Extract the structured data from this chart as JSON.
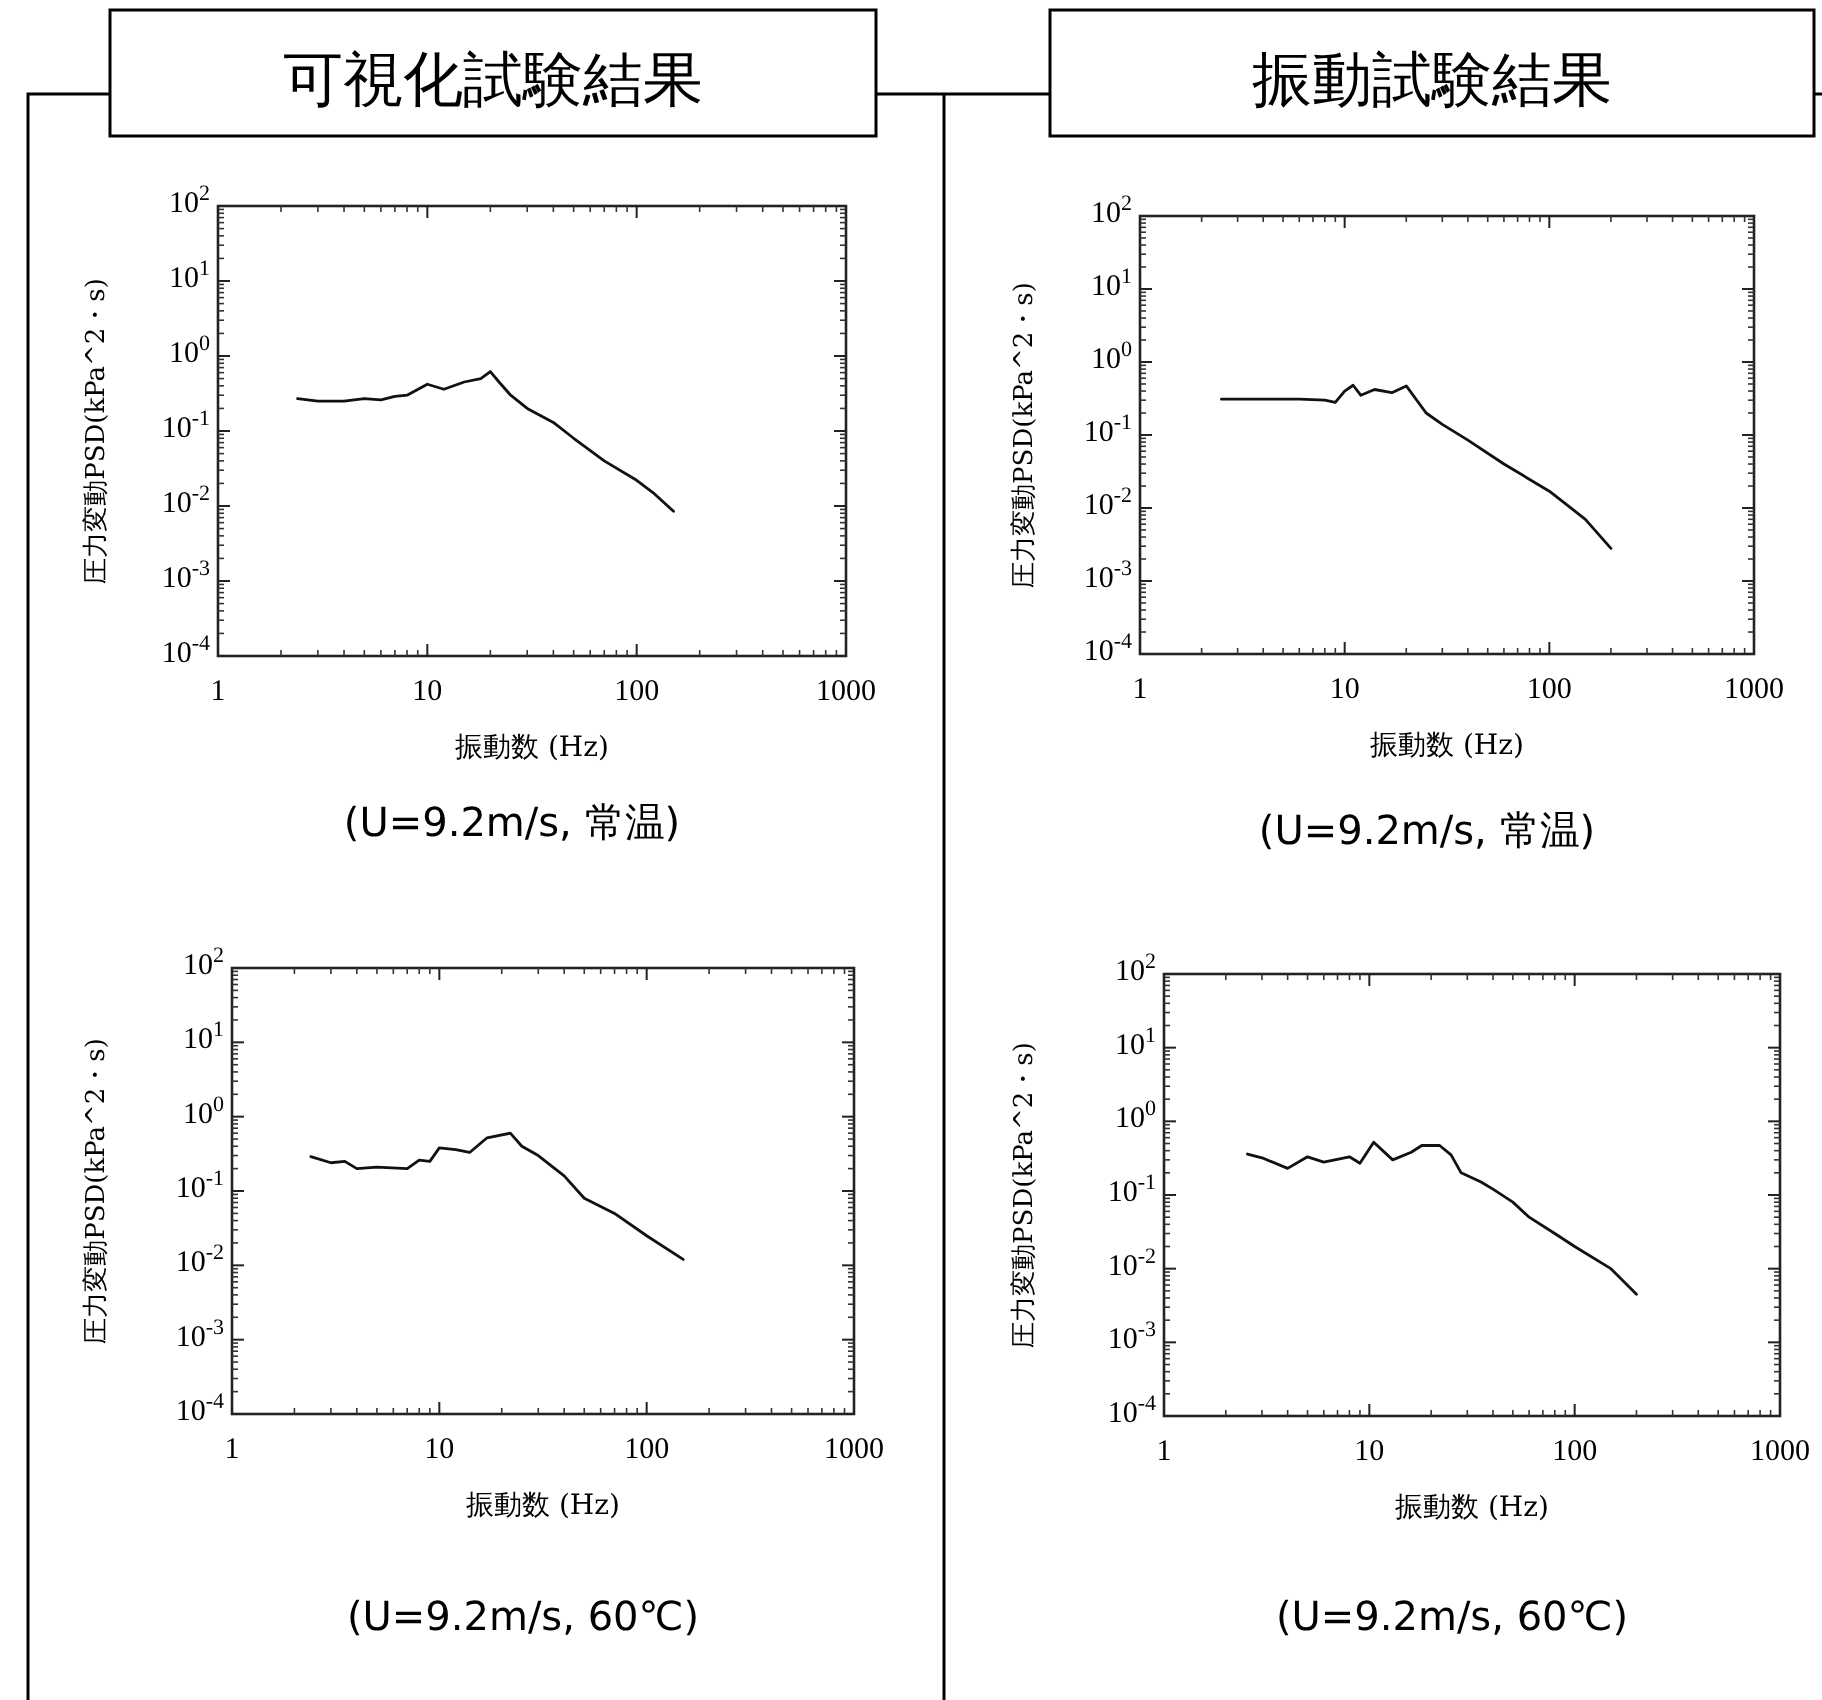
{
  "chart_data": [
    {
      "type": "line",
      "title": "可視化試験結果",
      "xlabel": "振動数 (Hz)",
      "ylabel": "圧力変動PSD(kPa^2・s)",
      "annotations": [
        "(U=9.2m/s, 常温)"
      ],
      "log": "xy",
      "xlim": [
        1,
        1000
      ],
      "ylim": [
        0.0001,
        100
      ],
      "xticks": [
        1,
        10,
        100,
        1000
      ],
      "yticks": [
        {
          "value": 0.0001,
          "label": "10$^{-4}$"
        },
        {
          "value": 0.001,
          "label": "10$^{-3}$"
        },
        {
          "value": 0.01,
          "label": "10$^{-2}$"
        },
        {
          "value": 0.1,
          "label": "10$^{-1}$"
        },
        {
          "value": 1,
          "label": "10$^{0}$"
        },
        {
          "value": 10,
          "label": "10$^{1}$"
        },
        {
          "value": 100,
          "label": "10$^{2}$"
        }
      ],
      "series": [
        {
          "color": "#111111",
          "x": [
            2.4,
            3,
            4,
            5,
            6,
            7,
            8,
            10,
            12,
            15,
            18,
            20,
            22,
            25,
            30,
            40,
            50,
            70,
            100,
            120,
            150
          ],
          "values": [
            0.27,
            0.25,
            0.25,
            0.27,
            0.26,
            0.29,
            0.3,
            0.42,
            0.36,
            0.45,
            0.5,
            0.62,
            0.45,
            0.3,
            0.2,
            0.13,
            0.08,
            0.04,
            0.022,
            0.015,
            0.0085
          ]
        }
      ]
    },
    {
      "type": "line",
      "title": "振動試験結果",
      "xlabel": "振動数 (Hz)",
      "ylabel": "圧力変動PSD(kPa^2・s)",
      "annotations": [
        "(U=9.2m/s, 常温)"
      ],
      "log": "xy",
      "xlim": [
        1,
        1000
      ],
      "ylim": [
        0.0001,
        100
      ],
      "xticks": [
        1,
        10,
        100,
        1000
      ],
      "yticks": [
        {
          "value": 0.0001,
          "label": "10$^{-4}$"
        },
        {
          "value": 0.001,
          "label": "10$^{-3}$"
        },
        {
          "value": 0.01,
          "label": "10$^{-2}$"
        },
        {
          "value": 0.1,
          "label": "10$^{-1}$"
        },
        {
          "value": 1,
          "label": "10$^{0}$"
        },
        {
          "value": 10,
          "label": "10$^{1}$"
        },
        {
          "value": 100,
          "label": "10$^{2}$"
        }
      ],
      "series": [
        {
          "color": "#111111",
          "x": [
            2.5,
            4,
            6,
            8,
            9,
            10,
            11,
            12,
            14,
            17,
            20,
            25,
            30,
            40,
            60,
            100,
            150,
            200
          ],
          "values": [
            0.31,
            0.31,
            0.31,
            0.3,
            0.28,
            0.4,
            0.48,
            0.35,
            0.42,
            0.38,
            0.47,
            0.2,
            0.14,
            0.085,
            0.04,
            0.017,
            0.007,
            0.0028
          ]
        }
      ]
    },
    {
      "type": "line",
      "xlabel": "振動数 (Hz)",
      "ylabel": "圧力変動PSD(kPa^2・s)",
      "annotations": [
        "(U=9.2m/s, 60℃)"
      ],
      "log": "xy",
      "xlim": [
        1,
        1000
      ],
      "ylim": [
        0.0001,
        100
      ],
      "xticks": [
        1,
        10,
        100,
        1000
      ],
      "yticks": [
        {
          "value": 0.0001,
          "label": "10$^{-4}$"
        },
        {
          "value": 0.001,
          "label": "10$^{-3}$"
        },
        {
          "value": 0.01,
          "label": "10$^{-2}$"
        },
        {
          "value": 0.1,
          "label": "10$^{-1}$"
        },
        {
          "value": 1,
          "label": "10$^{0}$"
        },
        {
          "value": 10,
          "label": "10$^{1}$"
        },
        {
          "value": 100,
          "label": "10$^{2}$"
        }
      ],
      "series": [
        {
          "color": "#111111",
          "x": [
            2.4,
            3,
            3.5,
            4,
            5,
            7,
            8,
            9,
            10,
            12,
            14,
            17,
            22,
            25,
            30,
            40,
            50,
            70,
            100,
            150
          ],
          "values": [
            0.29,
            0.24,
            0.25,
            0.2,
            0.21,
            0.2,
            0.26,
            0.25,
            0.38,
            0.36,
            0.33,
            0.52,
            0.6,
            0.4,
            0.3,
            0.16,
            0.08,
            0.05,
            0.025,
            0.012
          ]
        }
      ]
    },
    {
      "type": "line",
      "xlabel": "振動数 (Hz)",
      "ylabel": "圧力変動PSD(kPa^2・s)",
      "annotations": [
        "(U=9.2m/s, 60℃)"
      ],
      "log": "xy",
      "xlim": [
        1,
        1000
      ],
      "ylim": [
        0.0001,
        100
      ],
      "xticks": [
        1,
        10,
        100,
        1000
      ],
      "yticks": [
        {
          "value": 0.0001,
          "label": "10$^{-4}$"
        },
        {
          "value": 0.001,
          "label": "10$^{-3}$"
        },
        {
          "value": 0.01,
          "label": "10$^{-2}$"
        },
        {
          "value": 0.1,
          "label": "10$^{-1}$"
        },
        {
          "value": 1,
          "label": "10$^{0}$"
        },
        {
          "value": 10,
          "label": "10$^{1}$"
        },
        {
          "value": 100,
          "label": "10$^{2}$"
        }
      ],
      "series": [
        {
          "color": "#111111",
          "x": [
            2.55,
            3,
            4,
            5,
            6,
            8,
            9,
            10.5,
            13,
            16,
            18,
            22,
            25,
            28,
            35,
            40,
            50,
            60,
            80,
            100,
            150,
            200
          ],
          "values": [
            0.36,
            0.32,
            0.23,
            0.33,
            0.28,
            0.33,
            0.27,
            0.52,
            0.3,
            0.38,
            0.47,
            0.47,
            0.35,
            0.2,
            0.15,
            0.12,
            0.08,
            0.05,
            0.03,
            0.02,
            0.01,
            0.0045
          ]
        }
      ]
    }
  ]
}
